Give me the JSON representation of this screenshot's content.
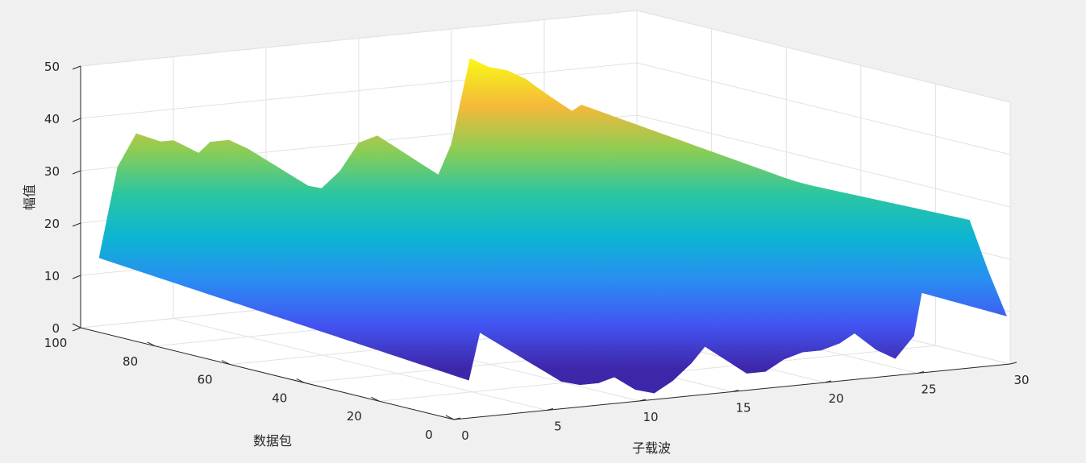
{
  "chart_data": {
    "type": "surface",
    "title": "",
    "xlabel": "子载波",
    "ylabel": "数据包",
    "zlabel": "幅值",
    "xlim": [
      0,
      30
    ],
    "ylim": [
      0,
      100
    ],
    "zlim": [
      0,
      50
    ],
    "x_ticks": [
      0,
      5,
      10,
      15,
      20,
      25,
      30
    ],
    "y_ticks": [
      0,
      20,
      40,
      60,
      80,
      100
    ],
    "z_ticks": [
      0,
      10,
      20,
      30,
      40,
      50
    ],
    "grid": true,
    "colormap": "parula",
    "subcarriers": [
      1,
      2,
      3,
      4,
      5,
      6,
      7,
      8,
      9,
      10,
      11,
      12,
      13,
      14,
      15,
      16,
      17,
      18,
      19,
      20,
      21,
      22,
      23,
      24,
      25,
      26,
      27,
      28,
      29,
      30
    ],
    "packets": [
      1,
      100
    ],
    "amplitude_by_subcarrier": {
      "at_packet_1": [
        7,
        22,
        30,
        27,
        16,
        5,
        4,
        4,
        5,
        2,
        1,
        3,
        6,
        10,
        8,
        3,
        3,
        5,
        6,
        6,
        7,
        9,
        5,
        3,
        7,
        26,
        25,
        28,
        18,
        9
      ],
      "at_packet_100": [
        13,
        30,
        36,
        34,
        34,
        30,
        33,
        33,
        31,
        27,
        22,
        23,
        22,
        25,
        30,
        31,
        27,
        24,
        20,
        28,
        44,
        42,
        41,
        39,
        36,
        31,
        33,
        26,
        23,
        11
      ]
    }
  }
}
